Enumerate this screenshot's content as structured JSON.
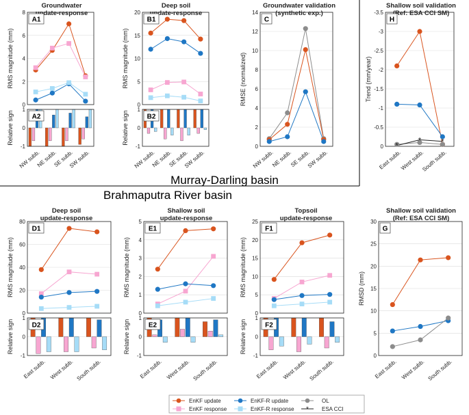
{
  "basins": {
    "top": "Murray-Darling basin",
    "bottom": "Brahmaputra River basin"
  },
  "colors": {
    "enkf_update": "#d9541e",
    "enkf_response": "#f7a6d1",
    "enkfr_update": "#1f77c4",
    "enkfr_response": "#a6dcf7",
    "ol": "#8c8c8c",
    "esa": "#222222"
  },
  "legend": {
    "enkf_update": "EnKF update",
    "enkf_response": "EnKF response",
    "enkfr_update": "EnKF-R update",
    "enkfr_response": "EnKF-R response",
    "ol": "OL",
    "esa": "ESA CCI"
  },
  "chart_data": [
    {
      "id": "A",
      "type": "line",
      "label": "A1",
      "sign_label": "A2",
      "title": [
        "Groundwater",
        "update-response"
      ],
      "ylabel": "RMS magnitude (mm)",
      "sign_ylabel": "Relative sign",
      "categories": [
        "NW subb.",
        "NE subb.",
        "SE subb.",
        "SW subb."
      ],
      "ylim": [
        0,
        8
      ],
      "yticks": [
        0,
        2,
        4,
        6,
        8
      ],
      "series": [
        {
          "key": "enkf_update",
          "name": "EnKF update",
          "values": [
            3.0,
            4.7,
            7.0,
            2.5
          ]
        },
        {
          "key": "enkf_response",
          "name": "EnKF response",
          "values": [
            3.2,
            4.9,
            5.3,
            2.4
          ]
        },
        {
          "key": "enkfr_update",
          "name": "EnKF-R update",
          "values": [
            0.4,
            1.0,
            1.8,
            0.3
          ]
        },
        {
          "key": "enkfr_response",
          "name": "EnKF-R response",
          "values": [
            1.1,
            1.4,
            1.9,
            0.9
          ]
        }
      ],
      "sign": {
        "ylim": [
          -1,
          1
        ],
        "yticks": [
          -1,
          0,
          1
        ],
        "series": [
          {
            "key": "enkf_update",
            "values": [
              -1,
              -1,
              -1,
              -0.9
            ]
          },
          {
            "key": "enkf_response",
            "values": [
              -0.7,
              -0.7,
              -0.7,
              -0.6
            ]
          },
          {
            "key": "enkfr_update",
            "values": [
              1,
              0.7,
              0.8,
              0.6
            ]
          },
          {
            "key": "enkfr_response",
            "values": [
              1,
              1,
              1,
              1
            ]
          }
        ]
      }
    },
    {
      "id": "B",
      "type": "line",
      "label": "B1",
      "sign_label": "B2",
      "title": [
        "Deep soil",
        "update-response"
      ],
      "ylabel": "RMS magnitude (mm)",
      "sign_ylabel": "Relative sign",
      "categories": [
        "NW subb.",
        "NE subb.",
        "SE subb.",
        "SW subb."
      ],
      "ylim": [
        0,
        20
      ],
      "yticks": [
        0,
        5,
        10,
        15,
        20
      ],
      "series": [
        {
          "key": "enkf_update",
          "name": "EnKF update",
          "values": [
            15.5,
            18.5,
            18.2,
            14.2
          ]
        },
        {
          "key": "enkfr_update",
          "name": "EnKF-R update",
          "values": [
            12.0,
            14.3,
            13.6,
            11.1
          ]
        },
        {
          "key": "enkf_response",
          "name": "EnKF response",
          "values": [
            3.2,
            4.8,
            4.9,
            2.3
          ]
        },
        {
          "key": "enkfr_response",
          "name": "EnKF-R response",
          "values": [
            1.5,
            1.9,
            1.6,
            0.8
          ]
        }
      ],
      "sign": {
        "ylim": [
          -1,
          1
        ],
        "yticks": [
          -1,
          0,
          1
        ],
        "series": [
          {
            "key": "enkf_update",
            "values": [
              1,
              1,
              1,
              1
            ]
          },
          {
            "key": "enkf_response",
            "values": [
              -0.3,
              -0.6,
              -0.7,
              -0.3
            ]
          },
          {
            "key": "enkfr_update",
            "values": [
              1,
              1,
              1,
              1
            ]
          },
          {
            "key": "enkfr_response",
            "values": [
              -0.2,
              -0.4,
              -0.4,
              -0.1
            ]
          }
        ]
      }
    },
    {
      "id": "C",
      "type": "line",
      "label": "C",
      "title": [
        "Groundwater validation",
        "(synthetic exp.)"
      ],
      "ylabel": "RMSE (normalized)",
      "categories": [
        "NW subb.",
        "NE subb.",
        "SE subb.",
        "SW subb."
      ],
      "ylim": [
        0,
        14
      ],
      "yticks": [
        0,
        2,
        4,
        6,
        8,
        10,
        12,
        14
      ],
      "series": [
        {
          "key": "ol",
          "name": "OL",
          "values": [
            0.8,
            3.5,
            12.3,
            0.8
          ]
        },
        {
          "key": "enkf_update",
          "name": "EnKF update",
          "values": [
            0.7,
            2.3,
            10.1,
            0.7
          ]
        },
        {
          "key": "enkfr_update",
          "name": "EnKF-R update",
          "values": [
            0.5,
            1.0,
            5.7,
            0.5
          ]
        }
      ]
    },
    {
      "id": "H",
      "type": "line",
      "label": "H",
      "title": [
        "Shallow soil validation",
        "(Ref: ESA CCI SM)"
      ],
      "ylabel": "Trend (mm/year)",
      "categories": [
        "East subb.",
        "West subb.",
        "South subb."
      ],
      "ylim": [
        0,
        -3.5
      ],
      "yticks": [
        0,
        -0.5,
        -1,
        -1.5,
        -2,
        -2.5,
        -3,
        -3.5
      ],
      "series": [
        {
          "key": "enkf_update",
          "name": "EnKF update",
          "values": [
            -2.1,
            -3.0,
            -0.05
          ]
        },
        {
          "key": "enkfr_update",
          "name": "EnKF-R update",
          "values": [
            -1.1,
            -1.08,
            -0.25
          ]
        },
        {
          "key": "ol",
          "name": "OL",
          "values": [
            -0.05,
            -0.1,
            -0.05
          ]
        },
        {
          "key": "esa",
          "name": "ESA CCI",
          "values": [
            -0.02,
            -0.17,
            -0.13
          ]
        }
      ]
    },
    {
      "id": "D",
      "type": "line",
      "label": "D1",
      "sign_label": "D2",
      "title": [
        "Deep soil",
        "update-response"
      ],
      "ylabel": "RMS magnitude (mm)",
      "sign_ylabel": "Relative sign",
      "categories": [
        "East subb.",
        "West subb.",
        "South subb."
      ],
      "ylim": [
        0,
        80
      ],
      "yticks": [
        0,
        20,
        40,
        60,
        80
      ],
      "series": [
        {
          "key": "enkf_update",
          "name": "EnKF update",
          "values": [
            38,
            74,
            71
          ]
        },
        {
          "key": "enkf_response",
          "name": "EnKF response",
          "values": [
            17,
            36,
            34
          ]
        },
        {
          "key": "enkfr_update",
          "name": "EnKF-R update",
          "values": [
            14,
            18,
            19
          ]
        },
        {
          "key": "enkfr_response",
          "name": "EnKF-R response",
          "values": [
            4,
            5,
            6
          ]
        }
      ],
      "sign": {
        "ylim": [
          -1,
          1
        ],
        "yticks": [
          -1,
          0,
          1
        ],
        "series": [
          {
            "key": "enkf_update",
            "values": [
              1,
              1,
              1
            ]
          },
          {
            "key": "enkf_response",
            "values": [
              -0.9,
              -0.8,
              -0.6
            ]
          },
          {
            "key": "enkfr_update",
            "values": [
              1,
              1,
              0.9
            ]
          },
          {
            "key": "enkfr_response",
            "values": [
              -0.8,
              -0.8,
              -0.7
            ]
          }
        ]
      }
    },
    {
      "id": "E",
      "type": "line",
      "label": "E1",
      "sign_label": "E2",
      "title": [
        "Shallow soil",
        "update-response"
      ],
      "ylabel": "RMS magnitude (mm)",
      "sign_ylabel": "Relative sign",
      "categories": [
        "East subb.",
        "West subb.",
        "South subb."
      ],
      "ylim": [
        0,
        5
      ],
      "yticks": [
        0,
        1,
        2,
        3,
        4,
        5
      ],
      "series": [
        {
          "key": "enkf_update",
          "name": "EnKF update",
          "values": [
            2.4,
            4.5,
            4.6
          ]
        },
        {
          "key": "enkf_response",
          "name": "EnKF response",
          "values": [
            0.5,
            1.2,
            3.1
          ]
        },
        {
          "key": "enkfr_update",
          "name": "EnKF-R update",
          "values": [
            1.3,
            1.6,
            1.5
          ]
        },
        {
          "key": "enkfr_response",
          "name": "EnKF-R response",
          "values": [
            0.4,
            0.6,
            0.8
          ]
        }
      ],
      "sign": {
        "ylim": [
          -1,
          1
        ],
        "yticks": [
          -1,
          0,
          1
        ],
        "series": [
          {
            "key": "enkf_update",
            "values": [
              1,
              1,
              0.8
            ]
          },
          {
            "key": "enkf_response",
            "values": [
              0.1,
              0.4,
              0.3
            ]
          },
          {
            "key": "enkfr_update",
            "values": [
              0.9,
              1,
              0.9
            ]
          },
          {
            "key": "enkfr_response",
            "values": [
              -0.3,
              -0.3,
              0.1
            ]
          }
        ]
      }
    },
    {
      "id": "F",
      "type": "line",
      "label": "F1",
      "sign_label": "F2",
      "title": [
        "Topsoil",
        "update-response"
      ],
      "ylabel": "RMS magnitude (mm)",
      "sign_ylabel": "Relative sign",
      "categories": [
        "East subb.",
        "West subb.",
        "South subb."
      ],
      "ylim": [
        0,
        25
      ],
      "yticks": [
        0,
        5,
        10,
        15,
        20,
        25
      ],
      "series": [
        {
          "key": "enkf_update",
          "name": "EnKF update",
          "values": [
            9.2,
            19.2,
            21.3
          ]
        },
        {
          "key": "enkf_response",
          "name": "EnKF response",
          "values": [
            4.0,
            8.5,
            10.3
          ]
        },
        {
          "key": "enkfr_update",
          "name": "EnKF-R update",
          "values": [
            3.7,
            4.8,
            5.1
          ]
        },
        {
          "key": "enkfr_response",
          "name": "EnKF-R response",
          "values": [
            2.0,
            2.5,
            3.0
          ]
        }
      ],
      "sign": {
        "ylim": [
          -1,
          1
        ],
        "yticks": [
          -1,
          0,
          1
        ],
        "series": [
          {
            "key": "enkf_update",
            "values": [
              1,
              1,
              1
            ]
          },
          {
            "key": "enkf_response",
            "values": [
              -0.7,
              -0.8,
              -0.6
            ]
          },
          {
            "key": "enkfr_update",
            "values": [
              1,
              1,
              0.8
            ]
          },
          {
            "key": "enkfr_response",
            "values": [
              -0.5,
              -0.4,
              -0.3
            ]
          }
        ]
      }
    },
    {
      "id": "G",
      "type": "line",
      "label": "G",
      "title": [
        "Shallow soil validation",
        "(Ref: ESA CCI SM)"
      ],
      "ylabel": "RMSD (mm)",
      "categories": [
        "East subb.",
        "West subb.",
        "South subb."
      ],
      "ylim": [
        0,
        30
      ],
      "yticks": [
        0,
        5,
        10,
        15,
        20,
        25,
        30
      ],
      "series": [
        {
          "key": "enkf_update",
          "name": "EnKF update",
          "values": [
            11.4,
            21.4,
            21.9
          ]
        },
        {
          "key": "enkfr_update",
          "name": "EnKF-R update",
          "values": [
            5.5,
            6.5,
            7.8
          ]
        },
        {
          "key": "ol",
          "name": "OL",
          "values": [
            2.0,
            3.5,
            8.4
          ]
        }
      ]
    }
  ]
}
